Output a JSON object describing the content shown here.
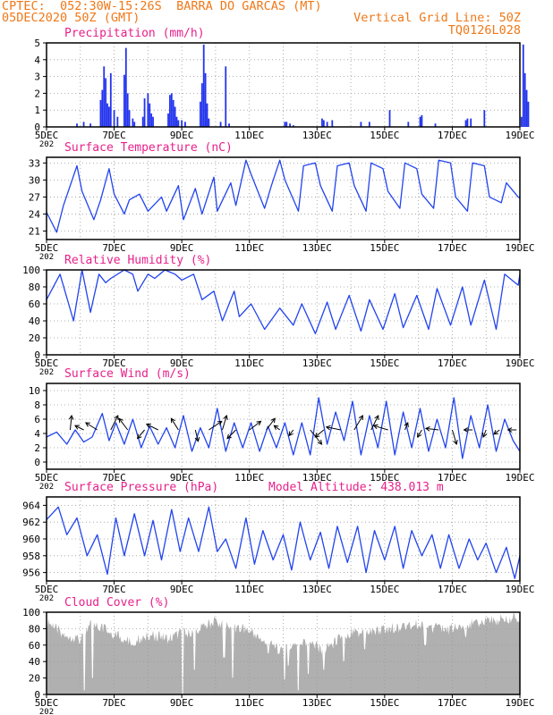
{
  "header": {
    "line1_left": "CPTEC:  052:30W-15:26S  BARRA DO GARCAS (MT)",
    "line2_left": "05DEC2020 50Z (GMT)",
    "line2_right": "Vertical Grid Line: 50Z",
    "line3_right": "TQ0126L028",
    "model_altitude": "Model Altitude: 438.013 m"
  },
  "colors": {
    "header": "#f07818",
    "title": "#e8208a",
    "line": "#2244ee",
    "bar": "#2233ee",
    "cloud": "#b0b0b0",
    "grid": "#999999"
  },
  "x_axis": {
    "labels": [
      "5DEC",
      "7DEC",
      "9DEC",
      "11DEC",
      "13DEC",
      "15DEC",
      "17DEC",
      "19DEC"
    ],
    "sub_label": "202"
  },
  "chart_data": [
    {
      "id": "precip",
      "type": "bar",
      "title": "Precipitation (mm/h)",
      "ylim": [
        0,
        5
      ],
      "yticks": [
        0,
        1,
        2,
        3,
        4,
        5
      ],
      "x": [
        0.9,
        1.1,
        1.3,
        1.6,
        1.65,
        1.7,
        1.75,
        1.8,
        1.85,
        1.9,
        2.0,
        2.1,
        2.3,
        2.35,
        2.4,
        2.45,
        2.55,
        2.6,
        2.85,
        2.9,
        3.0,
        3.05,
        3.1,
        3.15,
        3.6,
        3.65,
        3.7,
        3.75,
        3.8,
        3.85,
        3.9,
        4.0,
        4.1,
        4.55,
        4.6,
        4.65,
        4.7,
        4.75,
        4.8,
        5.15,
        5.3,
        5.4,
        7.05,
        7.1,
        7.2,
        7.3,
        8.15,
        8.2,
        8.3,
        8.45,
        9.3,
        9.55,
        10.15,
        10.7,
        11.05,
        11.1,
        11.5,
        12.4,
        12.45,
        12.55,
        12.95,
        14.05,
        14.1,
        14.15,
        14.2,
        14.25
      ],
      "values": [
        0.2,
        0.3,
        0.2,
        1.6,
        2.2,
        3.6,
        2.9,
        1.4,
        1.2,
        3.2,
        1.0,
        0.6,
        3.1,
        4.7,
        2.0,
        1.0,
        0.5,
        0.3,
        0.6,
        1.7,
        2.0,
        1.4,
        0.8,
        0.6,
        0.8,
        1.9,
        2.0,
        1.6,
        1.2,
        0.6,
        0.4,
        0.4,
        0.3,
        1.5,
        2.6,
        4.9,
        3.2,
        1.4,
        0.5,
        0.3,
        3.6,
        0.2,
        0.3,
        0.3,
        0.2,
        0.1,
        0.5,
        0.4,
        0.3,
        0.4,
        0.3,
        0.3,
        1.0,
        0.3,
        0.6,
        0.7,
        0.2,
        0.4,
        0.5,
        0.5,
        1.0,
        0.6,
        4.9,
        3.2,
        2.2,
        1.5
      ]
    },
    {
      "id": "temp",
      "type": "line",
      "title": "Surface Temperature (nC)",
      "ylim": [
        19.5,
        34
      ],
      "yticks": [
        21,
        24,
        27,
        30,
        33
      ],
      "x": [
        0.0,
        0.3,
        0.5,
        0.9,
        1.05,
        1.4,
        1.6,
        1.85,
        2.0,
        2.3,
        2.45,
        2.75,
        3.0,
        3.4,
        3.55,
        3.9,
        4.05,
        4.4,
        4.6,
        4.95,
        5.05,
        5.45,
        5.6,
        5.9,
        6.05,
        6.45,
        6.65,
        6.9,
        7.05,
        7.45,
        7.6,
        7.95,
        8.1,
        8.45,
        8.6,
        8.95,
        9.1,
        9.45,
        9.6,
        9.95,
        10.1,
        10.45,
        10.6,
        10.95,
        11.1,
        11.45,
        11.6,
        11.95,
        12.1,
        12.45,
        12.6,
        12.95,
        13.1,
        13.45,
        13.6,
        13.95,
        14.0
      ],
      "values": [
        24.3,
        20.8,
        25.5,
        32.5,
        28.0,
        23.0,
        26.5,
        32.0,
        27.5,
        24.0,
        26.5,
        27.5,
        24.5,
        27.0,
        24.5,
        29.0,
        23.0,
        28.5,
        24.0,
        30.5,
        24.5,
        29.5,
        25.5,
        33.5,
        31.0,
        25.0,
        29.0,
        33.5,
        30.0,
        24.5,
        32.5,
        33.0,
        29.0,
        24.5,
        32.5,
        33.0,
        29.0,
        24.5,
        33.0,
        32.0,
        28.0,
        25.0,
        33.0,
        32.0,
        27.5,
        25.0,
        33.5,
        33.0,
        27.0,
        24.5,
        33.0,
        32.5,
        27.0,
        26.0,
        29.5,
        27.0,
        26.8
      ]
    },
    {
      "id": "rh",
      "type": "line",
      "title": "Relative Humidity (%)",
      "ylim": [
        0,
        100
      ],
      "yticks": [
        0,
        20,
        40,
        60,
        80,
        100
      ],
      "x": [
        0.0,
        0.4,
        0.8,
        1.05,
        1.3,
        1.55,
        1.75,
        1.9,
        2.3,
        2.55,
        2.7,
        3.0,
        3.2,
        3.5,
        3.8,
        4.0,
        4.35,
        4.6,
        4.95,
        5.2,
        5.55,
        5.7,
        6.05,
        6.45,
        6.9,
        7.3,
        7.55,
        7.95,
        8.3,
        8.55,
        8.95,
        9.3,
        9.55,
        9.95,
        10.3,
        10.55,
        10.95,
        11.3,
        11.55,
        11.95,
        12.3,
        12.55,
        12.95,
        13.3,
        13.55,
        13.95,
        14.0
      ],
      "values": [
        65,
        95,
        40,
        100,
        50,
        95,
        85,
        90,
        100,
        95,
        75,
        95,
        90,
        100,
        95,
        88,
        95,
        65,
        75,
        40,
        75,
        45,
        60,
        30,
        55,
        35,
        60,
        25,
        62,
        30,
        70,
        28,
        65,
        30,
        72,
        32,
        70,
        30,
        78,
        35,
        80,
        35,
        88,
        30,
        95,
        82,
        95
      ]
    },
    {
      "id": "wind",
      "type": "line",
      "title": "Surface Wind (m/s)",
      "ylim": [
        -1,
        11
      ],
      "yticks": [
        0,
        2,
        4,
        6,
        8,
        10
      ],
      "x": [
        0.0,
        0.3,
        0.6,
        0.85,
        1.1,
        1.35,
        1.65,
        1.85,
        2.05,
        2.3,
        2.55,
        2.8,
        3.05,
        3.3,
        3.55,
        3.8,
        4.05,
        4.3,
        4.55,
        4.8,
        5.05,
        5.3,
        5.55,
        5.8,
        6.05,
        6.3,
        6.55,
        6.8,
        7.05,
        7.3,
        7.55,
        7.8,
        8.05,
        8.3,
        8.55,
        8.8,
        9.05,
        9.3,
        9.55,
        9.8,
        10.05,
        10.3,
        10.55,
        10.8,
        11.05,
        11.3,
        11.55,
        11.8,
        12.05,
        12.3,
        12.55,
        12.8,
        13.05,
        13.3,
        13.55,
        13.8,
        14.0
      ],
      "values": [
        3.5,
        4.2,
        2.5,
        4.5,
        2.8,
        3.5,
        6.8,
        3.0,
        5.5,
        2.5,
        6.0,
        2.0,
        5.0,
        2.5,
        4.8,
        2.0,
        6.5,
        1.5,
        4.8,
        2.0,
        7.5,
        1.5,
        5.5,
        2.0,
        5.5,
        1.5,
        5.0,
        2.0,
        5.5,
        1.0,
        5.5,
        1.0,
        9.0,
        2.5,
        7.0,
        3.0,
        8.5,
        1.0,
        6.5,
        2.0,
        8.5,
        1.0,
        7.0,
        2.0,
        7.5,
        1.5,
        6.0,
        2.0,
        9.0,
        0.5,
        6.5,
        2.0,
        8.0,
        1.5,
        6.0,
        3.0,
        1.5
      ],
      "arrows": [
        {
          "x": 0.7,
          "u": 0.1,
          "v": 1.0
        },
        {
          "x": 1.1,
          "u": -0.6,
          "v": 0.3
        },
        {
          "x": 1.5,
          "u": -0.8,
          "v": 0.5
        },
        {
          "x": 1.9,
          "u": 0.5,
          "v": 1.0
        },
        {
          "x": 2.4,
          "u": -0.6,
          "v": 0.8
        },
        {
          "x": 2.9,
          "u": -0.5,
          "v": -0.6
        },
        {
          "x": 3.3,
          "u": -0.8,
          "v": 0.4
        },
        {
          "x": 3.9,
          "u": -0.5,
          "v": 0.8
        },
        {
          "x": 4.4,
          "u": 0.2,
          "v": -0.8
        },
        {
          "x": 4.8,
          "u": 0.9,
          "v": 0.6
        },
        {
          "x": 5.2,
          "u": 0.3,
          "v": 1.0
        },
        {
          "x": 5.6,
          "u": -0.6,
          "v": -0.6
        },
        {
          "x": 6.0,
          "u": 0.8,
          "v": 0.6
        },
        {
          "x": 6.5,
          "u": 0.6,
          "v": 0.8
        },
        {
          "x": 6.9,
          "u": -0.4,
          "v": 0.3
        },
        {
          "x": 7.3,
          "u": -0.3,
          "v": -0.4
        },
        {
          "x": 7.8,
          "u": 0.8,
          "v": -1.0
        },
        {
          "x": 8.2,
          "u": -0.6,
          "v": -0.5
        },
        {
          "x": 8.7,
          "u": -1.0,
          "v": 0.2
        },
        {
          "x": 9.1,
          "u": 0.6,
          "v": 1.0
        },
        {
          "x": 9.6,
          "u": 0.5,
          "v": 1.0
        },
        {
          "x": 10.1,
          "u": -1.0,
          "v": 0.3
        },
        {
          "x": 10.6,
          "u": 0.2,
          "v": 0.5
        },
        {
          "x": 11.1,
          "u": -0.3,
          "v": -0.5
        },
        {
          "x": 11.6,
          "u": -0.9,
          "v": 0.1
        },
        {
          "x": 12.0,
          "u": 0.3,
          "v": -1.0
        },
        {
          "x": 12.6,
          "u": -0.6,
          "v": 0.0
        },
        {
          "x": 13.0,
          "u": -0.2,
          "v": -0.5
        },
        {
          "x": 13.4,
          "u": -0.4,
          "v": -0.3
        },
        {
          "x": 13.9,
          "u": -0.6,
          "v": 0.0
        }
      ]
    },
    {
      "id": "pres",
      "type": "line",
      "title": "Surface Pressure (hPa)",
      "ylim": [
        955,
        965
      ],
      "yticks": [
        956,
        958,
        960,
        962,
        964
      ],
      "x": [
        0.0,
        0.35,
        0.6,
        0.9,
        1.2,
        1.5,
        1.8,
        2.05,
        2.3,
        2.6,
        2.9,
        3.15,
        3.4,
        3.7,
        3.95,
        4.2,
        4.5,
        4.8,
        5.05,
        5.3,
        5.6,
        5.9,
        6.15,
        6.4,
        6.7,
        7.0,
        7.25,
        7.5,
        7.8,
        8.1,
        8.35,
        8.6,
        8.9,
        9.2,
        9.45,
        9.7,
        10.0,
        10.3,
        10.55,
        10.8,
        11.1,
        11.4,
        11.65,
        11.9,
        12.2,
        12.5,
        12.75,
        13.0,
        13.3,
        13.6,
        13.85,
        14.0
      ],
      "values": [
        962.3,
        963.8,
        960.5,
        962.5,
        958.0,
        960.5,
        955.8,
        962.5,
        958.0,
        963.0,
        958.0,
        962.2,
        957.5,
        963.5,
        958.5,
        962.5,
        958.5,
        963.8,
        958.5,
        960.0,
        956.5,
        962.5,
        957.0,
        961.0,
        957.5,
        960.5,
        956.3,
        962.0,
        957.5,
        960.8,
        956.5,
        961.5,
        957.2,
        961.5,
        956.0,
        961.0,
        957.5,
        961.5,
        956.5,
        961.0,
        958.0,
        960.5,
        956.5,
        960.5,
        956.5,
        960.0,
        957.5,
        959.5,
        956.0,
        959.0,
        955.3,
        958.0
      ]
    },
    {
      "id": "cloud",
      "type": "area",
      "title": "Cloud Cover (%)",
      "ylim": [
        0,
        100
      ],
      "yticks": [
        0,
        20,
        40,
        60,
        80,
        100
      ],
      "x": [
        0.0,
        0.5,
        1.0,
        1.3,
        1.8,
        2.5,
        3.0,
        3.6,
        4.0,
        4.3,
        4.9,
        5.4,
        6.0,
        6.5,
        7.0,
        7.6,
        8.2,
        8.8,
        9.5,
        10.2,
        11.0,
        11.8,
        12.5,
        13.2,
        13.8,
        14.0
      ],
      "values": [
        95,
        80,
        75,
        92,
        85,
        70,
        80,
        75,
        82,
        80,
        95,
        90,
        85,
        70,
        60,
        72,
        60,
        80,
        82,
        88,
        92,
        85,
        92,
        97,
        100,
        100
      ],
      "dips": [
        {
          "x": 1.12,
          "v": 5
        },
        {
          "x": 1.35,
          "v": 20
        },
        {
          "x": 4.02,
          "v": 0
        },
        {
          "x": 4.38,
          "v": 30
        },
        {
          "x": 5.25,
          "v": 45
        },
        {
          "x": 5.5,
          "v": 20
        },
        {
          "x": 6.55,
          "v": 50
        },
        {
          "x": 7.05,
          "v": 18
        },
        {
          "x": 7.15,
          "v": 35
        },
        {
          "x": 7.45,
          "v": 5
        },
        {
          "x": 7.75,
          "v": 25
        },
        {
          "x": 8.2,
          "v": 30
        },
        {
          "x": 8.8,
          "v": 40
        },
        {
          "x": 9.4,
          "v": 55
        },
        {
          "x": 11.2,
          "v": 60
        },
        {
          "x": 12.4,
          "v": 70
        }
      ]
    }
  ]
}
